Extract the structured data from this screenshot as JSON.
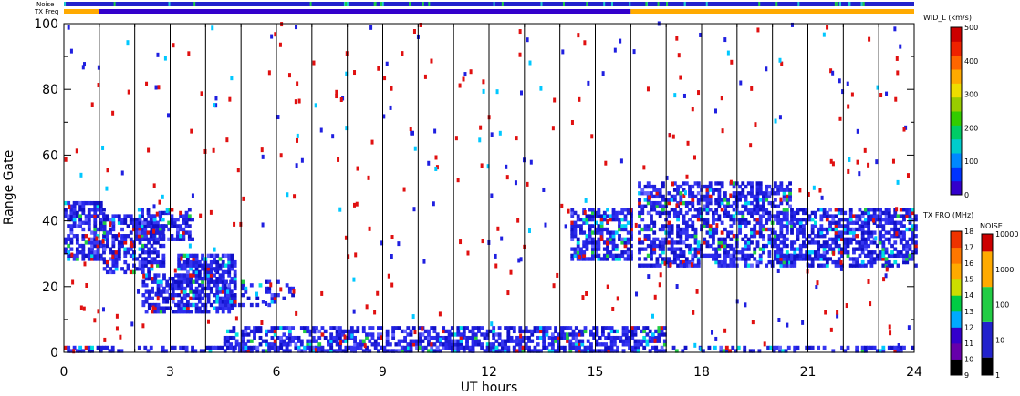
{
  "chart_data": {
    "type": "heatmap",
    "title": "",
    "xlabel": "UT hours",
    "ylabel": "Range Gate",
    "xlim": [
      0,
      24
    ],
    "ylim": [
      0,
      100
    ],
    "x_ticks": [
      0,
      3,
      6,
      9,
      12,
      15,
      18,
      21,
      24
    ],
    "y_ticks": [
      0,
      20,
      40,
      60,
      80,
      100
    ],
    "hour_lines": [
      1,
      2,
      3,
      4,
      5,
      6,
      7,
      8,
      9,
      10,
      11,
      12,
      13,
      14,
      15,
      16,
      17,
      18,
      19,
      20,
      21,
      22,
      23
    ],
    "top_bars": {
      "noise_label": "Noise",
      "txfreq_label": "TX Freq",
      "txfreq_segments": [
        {
          "from": 0,
          "to": 1,
          "color": "#ffaa00"
        },
        {
          "from": 1,
          "to": 16,
          "color": "#3300cc"
        },
        {
          "from": 16,
          "to": 24,
          "color": "#ffaa00"
        }
      ]
    },
    "parameter_colorbar": {
      "label": "WID_L (km/s)",
      "ticks": [
        0,
        100,
        200,
        300,
        400,
        500
      ]
    },
    "txfreq_colorbar": {
      "label": "TX FRQ (MHz)",
      "ticks": [
        9,
        10,
        11,
        12,
        13,
        14,
        15,
        16,
        17,
        18
      ]
    },
    "noise_colorbar": {
      "label": "NOISE",
      "ticks": [
        "1",
        "10",
        "100",
        "1000",
        "10000"
      ]
    },
    "scatter_regions": [
      {
        "t0": 0.0,
        "t1": 1.1,
        "g0": 28,
        "g1": 46,
        "density": 0.65
      },
      {
        "t0": 1.1,
        "t1": 2.8,
        "g0": 24,
        "g1": 42,
        "density": 0.6
      },
      {
        "t0": 2.0,
        "t1": 3.6,
        "g0": 34,
        "g1": 44,
        "density": 0.5
      },
      {
        "t0": 2.2,
        "t1": 3.2,
        "g0": 12,
        "g1": 24,
        "density": 0.55
      },
      {
        "t0": 3.2,
        "t1": 4.8,
        "g0": 12,
        "g1": 30,
        "density": 0.7
      },
      {
        "t0": 4.5,
        "t1": 6.5,
        "g0": 14,
        "g1": 22,
        "density": 0.2
      },
      {
        "t0": 14.3,
        "t1": 16.0,
        "g0": 28,
        "g1": 44,
        "density": 0.6
      },
      {
        "t0": 16.2,
        "t1": 20.5,
        "g0": 26,
        "g1": 52,
        "density": 0.55
      },
      {
        "t0": 20.5,
        "t1": 24.0,
        "g0": 26,
        "g1": 44,
        "density": 0.6
      },
      {
        "t0": 4.5,
        "t1": 17.0,
        "g0": 0,
        "g1": 8,
        "density": 0.55
      },
      {
        "t0": 0.0,
        "t1": 24.0,
        "g0": 0,
        "g1": 2,
        "density": 0.4
      }
    ]
  }
}
